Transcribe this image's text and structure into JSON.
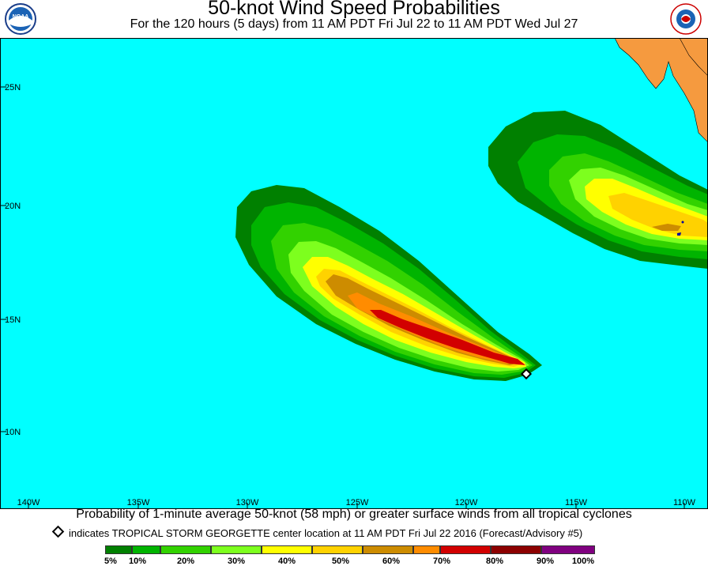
{
  "header": {
    "title": "50-knot Wind Speed Probabilities",
    "subtitle": "For the 120 hours (5 days) from 11 AM PDT Fri Jul 22 to 11 AM PDT Wed Jul 27",
    "left_logo_text": "NOAA",
    "right_logo_text": "NATIONAL WEATHER SERVICE"
  },
  "map": {
    "ocean_color": "#00ffff",
    "land_color": "#f59a3f",
    "lat_labels": [
      "25N",
      "20N",
      "15N",
      "10N"
    ],
    "lon_labels": [
      "140W",
      "135W",
      "130W",
      "125W",
      "120W",
      "115W",
      "110W"
    ],
    "storm_marker_icon": "diamond-icon"
  },
  "caption": {
    "main": "Probability of 1-minute average 50-knot (58 mph) or greater surface winds from all tropical cyclones",
    "note": "indicates TROPICAL STORM GEORGETTE center location at 11 AM PDT Fri Jul 22 2016 (Forecast/Advisory #5)"
  },
  "legend": {
    "colors": [
      "#008000",
      "#00b400",
      "#32d200",
      "#7dff1e",
      "#ffff00",
      "#ffd200",
      "#cd8c00",
      "#ff8c00",
      "#d20000",
      "#8c0000",
      "#800080"
    ],
    "labels": [
      "5%",
      "10%",
      "20%",
      "30%",
      "40%",
      "50%",
      "60%",
      "70%",
      "80%",
      "90%",
      "100%"
    ]
  }
}
